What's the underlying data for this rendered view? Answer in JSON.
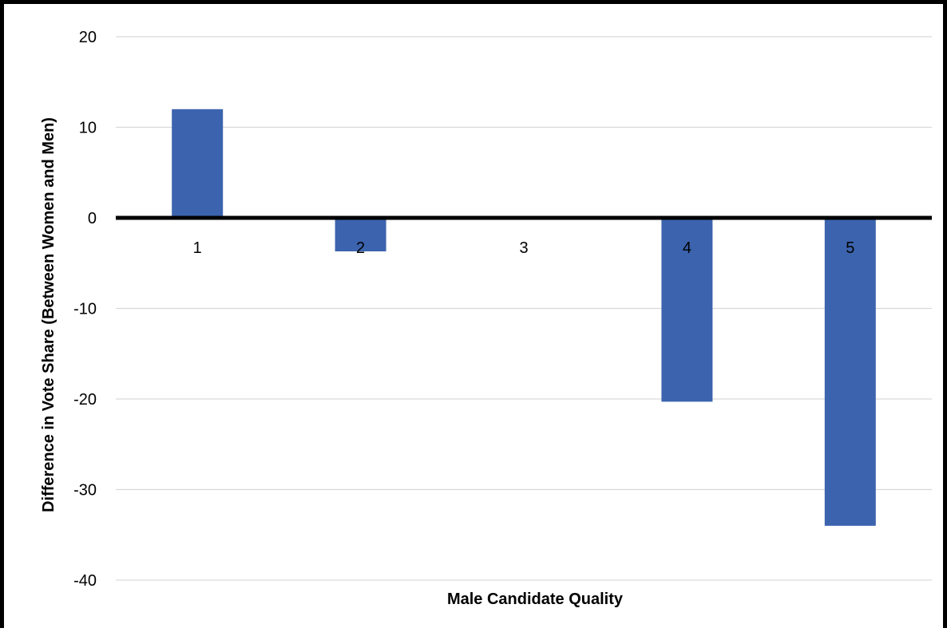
{
  "chart_data": {
    "type": "bar",
    "title": "",
    "xlabel": "Male Candidate Quality",
    "ylabel": "Difference in Vote Share (Between Women and Men)",
    "categories": [
      "1",
      "2",
      "3",
      "4",
      "5"
    ],
    "values": [
      12,
      -3.7,
      0,
      -20.3,
      -34
    ],
    "ylim": [
      -40,
      20
    ],
    "yticks": [
      20,
      10,
      0,
      -10,
      -20,
      -30,
      -40
    ],
    "grid": true,
    "legend": "none",
    "bar_color": "#3c64ae",
    "zero_line_color": "#000000",
    "grid_color": "#d9d9d9"
  }
}
